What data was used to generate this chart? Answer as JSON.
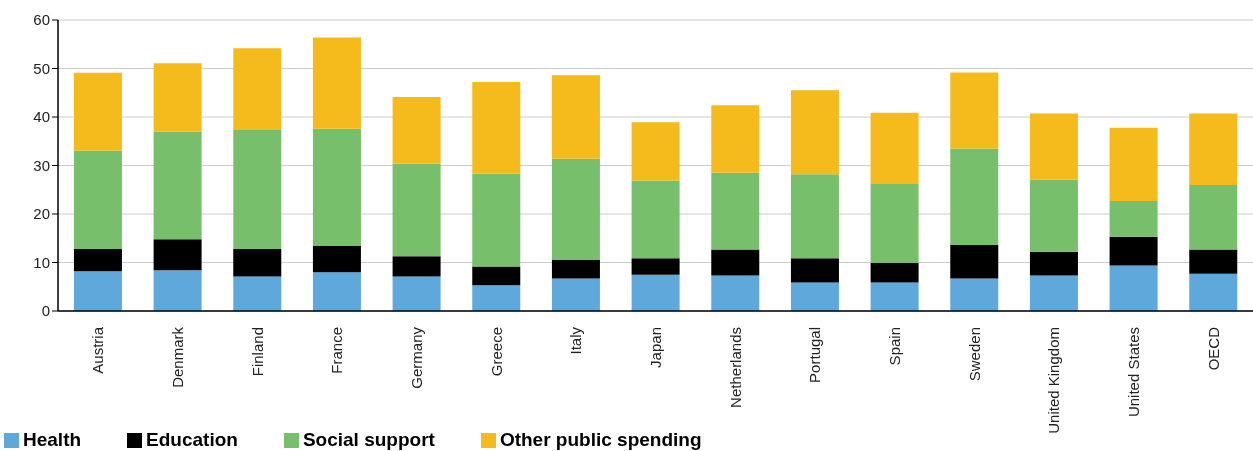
{
  "chart_data": {
    "type": "bar",
    "stacked": true,
    "categories": [
      "Austria",
      "Denmark",
      "Finland",
      "France",
      "Germany",
      "Greece",
      "Italy",
      "Japan",
      "Netherlands",
      "Portugal",
      "Spain",
      "Sweden",
      "United Kingdom",
      "United States",
      "OECD"
    ],
    "series": [
      {
        "name": "Health",
        "color": "#5fa8dc",
        "values": [
          8.2,
          8.4,
          7.1,
          8.0,
          7.1,
          5.3,
          6.7,
          7.5,
          7.3,
          5.9,
          5.9,
          6.7,
          7.3,
          9.4,
          7.7
        ]
      },
      {
        "name": "Education",
        "color": "#000000",
        "values": [
          4.6,
          6.4,
          5.7,
          5.4,
          4.2,
          3.9,
          3.8,
          3.4,
          5.4,
          5.0,
          4.0,
          6.9,
          4.9,
          5.9,
          5.0
        ]
      },
      {
        "name": "Social support",
        "color": "#77bf6b",
        "values": [
          20.3,
          22.2,
          24.5,
          24.2,
          19.1,
          19.1,
          20.9,
          16.0,
          15.8,
          17.3,
          16.3,
          19.9,
          14.9,
          7.4,
          13.3
        ]
      },
      {
        "name": "Other public spending",
        "color": "#f5bb1c",
        "values": [
          16.0,
          14.1,
          16.9,
          18.8,
          13.7,
          18.9,
          17.2,
          12.0,
          13.9,
          17.3,
          14.7,
          15.7,
          13.6,
          15.1,
          14.7
        ]
      }
    ],
    "ylim": [
      0,
      60
    ],
    "yticks": [
      0,
      10,
      20,
      30,
      40,
      50,
      60
    ],
    "grid": "y",
    "legend": "bottom left"
  }
}
